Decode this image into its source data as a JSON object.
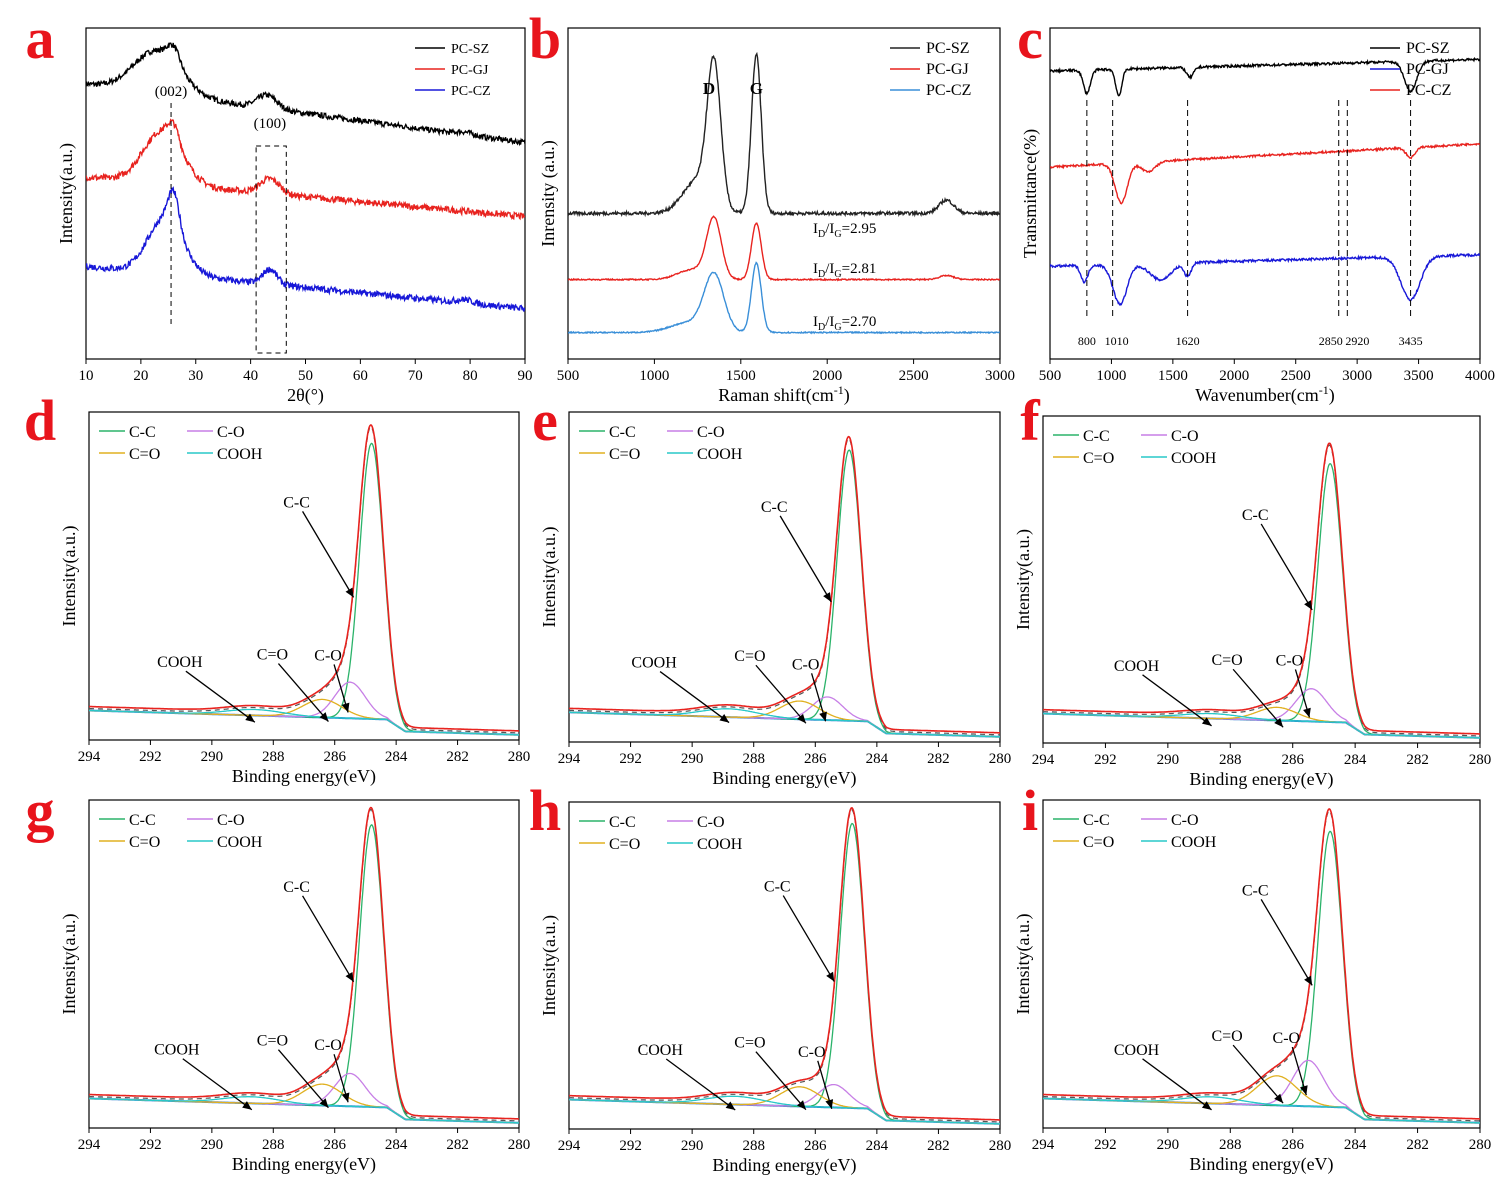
{
  "chart_data": [
    {
      "panel": "a",
      "type": "line",
      "xlabel": "2θ(°)",
      "ylabel": "Intensity(a.u.)",
      "xlim": [
        10,
        90
      ],
      "xticks": [
        10,
        20,
        30,
        40,
        50,
        60,
        70,
        80,
        90
      ],
      "legend_position": "top-right",
      "series": [
        {
          "name": "PC-SZ",
          "color": "#000000",
          "noise": 1.4,
          "baseline": 0.83,
          "peaks": [
            [
              23,
              0.13,
              6
            ],
            [
              26,
              0.05,
              1.6
            ],
            [
              43,
              0.04,
              2.5
            ],
            [
              79,
              0.008,
              2
            ]
          ],
          "slope": -0.0022
        },
        {
          "name": "PC-GJ",
          "color": "#e8231f",
          "noise": 1.6,
          "baseline": 0.55,
          "peaks": [
            [
              24,
              0.16,
              5
            ],
            [
              26,
              0.05,
              1.4
            ],
            [
              43.5,
              0.045,
              2.5
            ]
          ],
          "slope": -0.0015
        },
        {
          "name": "PC-CZ",
          "color": "#1818d8",
          "noise": 1.6,
          "baseline": 0.28,
          "peaks": [
            [
              24.5,
              0.17,
              4.5
            ],
            [
              26,
              0.1,
              1.4
            ],
            [
              43.5,
              0.045,
              1.8
            ],
            [
              79,
              0.01,
              2
            ]
          ],
          "slope": -0.0016
        }
      ],
      "annotations": [
        {
          "text": "(002)",
          "x": 25.5
        },
        {
          "text": "(100)",
          "x": 43.5
        }
      ],
      "dashed_x": [
        25.5
      ],
      "dashed_box_x": [
        41,
        46.5
      ]
    },
    {
      "panel": "b",
      "type": "line",
      "xlabel": "Raman shift(cm-1)",
      "ylabel": "Inrensity (a.u.)",
      "xlim": [
        500,
        3000
      ],
      "xticks": [
        500,
        1000,
        1500,
        2000,
        2500,
        3000
      ],
      "legend_position": "top-right",
      "series": [
        {
          "name": "PC-SZ",
          "color": "#222222",
          "noise": 0.8,
          "baseline": 0.44,
          "peaks": [
            [
              1345,
              0.42,
              55
            ],
            [
              1590,
              0.48,
              40
            ],
            [
              1250,
              0.1,
              120
            ],
            [
              2690,
              0.04,
              60
            ]
          ],
          "slope": 0
        },
        {
          "name": "PC-GJ",
          "color": "#e8231f",
          "noise": 0.3,
          "baseline": 0.24,
          "peaks": [
            [
              1345,
              0.18,
              60
            ],
            [
              1590,
              0.17,
              40
            ],
            [
              1220,
              0.03,
              120
            ],
            [
              2690,
              0.012,
              60
            ]
          ],
          "slope": 0
        },
        {
          "name": "PC-CZ",
          "color": "#3a8fd8",
          "noise": 0.3,
          "baseline": 0.08,
          "peaks": [
            [
              1345,
              0.17,
              80
            ],
            [
              1590,
              0.21,
              40
            ],
            [
              1200,
              0.03,
              150
            ]
          ],
          "slope": 0
        }
      ],
      "annotations": [
        {
          "text": "D",
          "x": 1345
        },
        {
          "text": "G",
          "x": 1590
        }
      ],
      "ratios": [
        {
          "sub1": "D",
          "sub2": "G",
          "value": "=2.95"
        },
        {
          "sub1": "D",
          "sub2": "G",
          "value": "=2.81"
        },
        {
          "sub1": "D",
          "sub2": "G",
          "value": "=2.70"
        }
      ]
    },
    {
      "panel": "c",
      "type": "line",
      "xlabel": "Wavenumber(cm-1)",
      "ylabel": "Transmittance(%)",
      "xlim": [
        500,
        4000
      ],
      "xticks": [
        500,
        1000,
        1500,
        2000,
        2500,
        3000,
        3500,
        4000
      ],
      "legend_position": "top-right",
      "series": [
        {
          "name": "PC-SZ",
          "color": "#000000",
          "noise": 0.6,
          "baseline": 0.87,
          "dips": [
            [
              800,
              0.07,
              40
            ],
            [
              1060,
              0.08,
              35
            ],
            [
              1640,
              0.03,
              40
            ],
            [
              3435,
              0.09,
              70
            ]
          ],
          "slope": 1e-05
        },
        {
          "name": "PC-GJ",
          "color": "#1818d8",
          "noise": 0.6,
          "baseline": 0.28,
          "dips": [
            [
              780,
              0.05,
              40
            ],
            [
              1070,
              0.12,
              80
            ],
            [
              1400,
              0.05,
              120
            ],
            [
              1620,
              0.04,
              40
            ],
            [
              3435,
              0.13,
              110
            ]
          ],
          "slope": 1e-05
        },
        {
          "name": "PC-CZ",
          "color": "#e8231f",
          "noise": 0.5,
          "baseline": 0.58,
          "dips": [
            [
              1080,
              0.12,
              70
            ],
            [
              1300,
              0.03,
              80
            ],
            [
              3435,
              0.03,
              50
            ]
          ],
          "slope": 2e-05
        }
      ],
      "dashed_x": [
        800,
        1010,
        1620,
        2850,
        2920,
        3435
      ],
      "peak_labels": [
        "800",
        "1010",
        "1620",
        "2850",
        "2920",
        "3435"
      ]
    },
    {
      "panel": "d",
      "type": "line",
      "xlabel": "Binding energy(eV)",
      "ylabel": "Intensity(a.u.)",
      "xlim": [
        294,
        280
      ],
      "xticks": [
        294,
        292,
        290,
        288,
        286,
        284,
        282,
        280
      ],
      "legend_position": "top-left",
      "series": [
        {
          "name": "C-C",
          "color": "#2bb36a"
        },
        {
          "name": "C-O",
          "color": "#c77fe6"
        },
        {
          "name": "C=O",
          "color": "#e0b020"
        },
        {
          "name": "COOH",
          "color": "#28c8c8"
        }
      ],
      "components": {
        "C-C": [
          284.8,
          0.84
        ],
        "C-O": [
          285.5,
          0.11
        ],
        "C=O": [
          286.4,
          0.055
        ],
        "COOH": [
          288.6,
          0.018
        ]
      },
      "labels": [
        "C-C",
        "C-O",
        "C=O",
        "COOH"
      ]
    },
    {
      "panel": "e",
      "type": "line",
      "xlabel": "Binding energy(eV)",
      "ylabel": "Intensity(a.u.)",
      "xlim": [
        294,
        280
      ],
      "xticks": [
        294,
        292,
        290,
        288,
        286,
        284,
        282,
        280
      ],
      "legend_position": "top-left",
      "series": [
        {
          "name": "C-C",
          "color": "#2bb36a"
        },
        {
          "name": "C-O",
          "color": "#c77fe6"
        },
        {
          "name": "C=O",
          "color": "#e0b020"
        },
        {
          "name": "COOH",
          "color": "#28c8c8"
        }
      ],
      "components": {
        "C-C": [
          284.9,
          0.82
        ],
        "C-O": [
          285.6,
          0.07
        ],
        "C=O": [
          286.5,
          0.055
        ],
        "COOH": [
          288.8,
          0.025
        ]
      },
      "labels": [
        "C-C",
        "C-O",
        "C=O",
        "COOH"
      ]
    },
    {
      "panel": "f",
      "type": "line",
      "xlabel": "Binding energy(eV)",
      "ylabel": "Intensity(a.u.)",
      "xlim": [
        294,
        280
      ],
      "xticks": [
        294,
        292,
        290,
        288,
        286,
        284,
        282,
        280
      ],
      "legend_position": "top-left",
      "series": [
        {
          "name": "C-C",
          "color": "#2bb36a"
        },
        {
          "name": "C-O",
          "color": "#c77fe6"
        },
        {
          "name": "C=O",
          "color": "#e0b020"
        },
        {
          "name": "COOH",
          "color": "#28c8c8"
        }
      ],
      "components": {
        "C-C": [
          284.8,
          0.79
        ],
        "C-O": [
          285.4,
          0.1
        ],
        "C=O": [
          286.5,
          0.04
        ],
        "COOH": [
          288.6,
          0.015
        ]
      },
      "labels": [
        "C-C",
        "C-O",
        "C=O",
        "COOH"
      ]
    },
    {
      "panel": "g",
      "type": "line",
      "xlabel": "Binding energy(eV)",
      "ylabel": "Intensity(a.u.)",
      "xlim": [
        294,
        280
      ],
      "xticks": [
        294,
        292,
        290,
        288,
        286,
        284,
        282,
        280
      ],
      "legend_position": "top-left",
      "series": [
        {
          "name": "C-C",
          "color": "#2bb36a"
        },
        {
          "name": "C-O",
          "color": "#c77fe6"
        },
        {
          "name": "C=O",
          "color": "#e0b020"
        },
        {
          "name": "COOH",
          "color": "#28c8c8"
        }
      ],
      "components": {
        "C-C": [
          284.8,
          0.86
        ],
        "C-O": [
          285.5,
          0.1
        ],
        "C=O": [
          286.4,
          0.065
        ],
        "COOH": [
          288.7,
          0.02
        ]
      },
      "labels": [
        "C-C",
        "C-O",
        "C=O",
        "COOH"
      ]
    },
    {
      "panel": "h",
      "type": "line",
      "xlabel": "Binding energy(eV)",
      "ylabel": "Intensity(a.u.)",
      "xlim": [
        294,
        280
      ],
      "xticks": [
        294,
        292,
        290,
        288,
        286,
        284,
        282,
        280
      ],
      "legend_position": "top-left",
      "series": [
        {
          "name": "C-C",
          "color": "#2bb36a"
        },
        {
          "name": "C-O",
          "color": "#c77fe6"
        },
        {
          "name": "C=O",
          "color": "#e0b020"
        },
        {
          "name": "COOH",
          "color": "#28c8c8"
        }
      ],
      "components": {
        "C-C": [
          284.8,
          0.87
        ],
        "C-O": [
          285.4,
          0.07
        ],
        "C=O": [
          286.5,
          0.06
        ],
        "COOH": [
          288.6,
          0.025
        ]
      },
      "labels": [
        "C-C",
        "C-O",
        "C=O",
        "COOH"
      ]
    },
    {
      "panel": "i",
      "type": "line",
      "xlabel": "Binding energy(eV)",
      "ylabel": "Intensity(a.u.)",
      "xlim": [
        294,
        280
      ],
      "xticks": [
        294,
        292,
        290,
        288,
        286,
        284,
        282,
        280
      ],
      "legend_position": "top-left",
      "series": [
        {
          "name": "C-C",
          "color": "#2bb36a"
        },
        {
          "name": "C-O",
          "color": "#c77fe6"
        },
        {
          "name": "C=O",
          "color": "#e0b020"
        },
        {
          "name": "COOH",
          "color": "#28c8c8"
        }
      ],
      "components": {
        "C-C": [
          284.8,
          0.84
        ],
        "C-O": [
          285.5,
          0.14
        ],
        "C=O": [
          286.5,
          0.09
        ],
        "COOH": [
          288.6,
          0.02
        ]
      },
      "labels": [
        "C-C",
        "C-O",
        "C=O",
        "COOH"
      ]
    }
  ]
}
